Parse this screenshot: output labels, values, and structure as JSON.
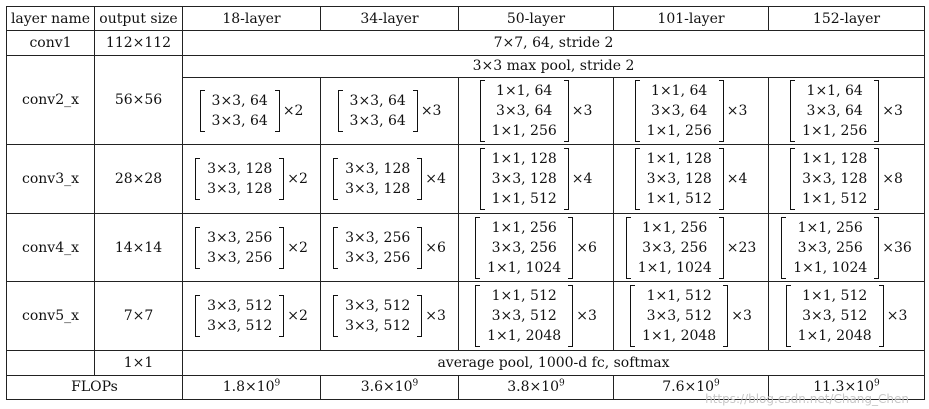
{
  "headers": [
    "layer name",
    "output size",
    "18-layer",
    "34-layer",
    "50-layer",
    "101-layer",
    "152-layer"
  ],
  "conv1": {
    "name": "conv1",
    "size": "112×112",
    "desc": "7×7, 64, stride 2"
  },
  "conv2": {
    "name": "conv2_x",
    "size": "56×56",
    "pool": "3×3 max pool, stride 2",
    "blocks": [
      {
        "lines": [
          "3×3, 64",
          "3×3, 64"
        ],
        "mult": "×2"
      },
      {
        "lines": [
          "3×3, 64",
          "3×3, 64"
        ],
        "mult": "×3"
      },
      {
        "lines": [
          "1×1, 64",
          "3×3, 64",
          "1×1, 256"
        ],
        "mult": "×3"
      },
      {
        "lines": [
          "1×1, 64",
          "3×3, 64",
          "1×1, 256"
        ],
        "mult": "×3"
      },
      {
        "lines": [
          "1×1, 64",
          "3×3, 64",
          "1×1, 256"
        ],
        "mult": "×3"
      }
    ]
  },
  "conv3": {
    "name": "conv3_x",
    "size": "28×28",
    "blocks": [
      {
        "lines": [
          "3×3, 128",
          "3×3, 128"
        ],
        "mult": "×2"
      },
      {
        "lines": [
          "3×3, 128",
          "3×3, 128"
        ],
        "mult": "×4"
      },
      {
        "lines": [
          "1×1, 128",
          "3×3, 128",
          "1×1, 512"
        ],
        "mult": "×4"
      },
      {
        "lines": [
          "1×1, 128",
          "3×3, 128",
          "1×1, 512"
        ],
        "mult": "×4"
      },
      {
        "lines": [
          "1×1, 128",
          "3×3, 128",
          "1×1, 512"
        ],
        "mult": "×8"
      }
    ]
  },
  "conv4": {
    "name": "conv4_x",
    "size": "14×14",
    "blocks": [
      {
        "lines": [
          "3×3, 256",
          "3×3, 256"
        ],
        "mult": "×2"
      },
      {
        "lines": [
          "3×3, 256",
          "3×3, 256"
        ],
        "mult": "×6"
      },
      {
        "lines": [
          "1×1, 256",
          "3×3, 256",
          "1×1, 1024"
        ],
        "mult": "×6"
      },
      {
        "lines": [
          "1×1, 256",
          "3×3, 256",
          "1×1, 1024"
        ],
        "mult": "×23"
      },
      {
        "lines": [
          "1×1, 256",
          "3×3, 256",
          "1×1, 1024"
        ],
        "mult": "×36"
      }
    ]
  },
  "conv5": {
    "name": "conv5_x",
    "size": "7×7",
    "blocks": [
      {
        "lines": [
          "3×3, 512",
          "3×3, 512"
        ],
        "mult": "×2"
      },
      {
        "lines": [
          "3×3, 512",
          "3×3, 512"
        ],
        "mult": "×3"
      },
      {
        "lines": [
          "1×1, 512",
          "3×3, 512",
          "1×1, 2048"
        ],
        "mult": "×3"
      },
      {
        "lines": [
          "1×1, 512",
          "3×3, 512",
          "1×1, 2048"
        ],
        "mult": "×3"
      },
      {
        "lines": [
          "1×1, 512",
          "3×3, 512",
          "1×1, 2048"
        ],
        "mult": "×3"
      }
    ]
  },
  "final": {
    "size": "1×1",
    "desc": "average pool, 1000-d fc, softmax"
  },
  "flops": {
    "label": "FLOPs",
    "values": [
      {
        "base": "1.8×10",
        "exp": "9"
      },
      {
        "base": "3.6×10",
        "exp": "9"
      },
      {
        "base": "3.8×10",
        "exp": "9"
      },
      {
        "base": "7.6×10",
        "exp": "9"
      },
      {
        "base": "11.3×10",
        "exp": "9"
      }
    ]
  },
  "watermark": "https://blog.csdn.net/Chang_Chen"
}
